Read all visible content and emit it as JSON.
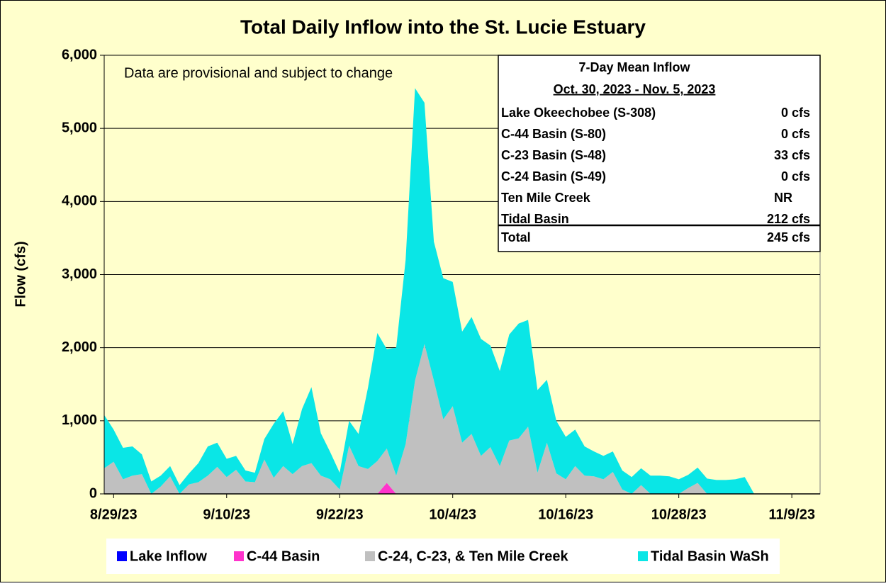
{
  "chart_data": {
    "type": "stacked_area",
    "title": "Total Daily Inflow into the St. Lucie Estuary",
    "ylabel": "Flow (cfs)",
    "annotation": "Data are provisional and subject to change",
    "x": [
      "2023-08-28",
      "2023-08-29",
      "2023-08-30",
      "2023-08-31",
      "2023-09-01",
      "2023-09-02",
      "2023-09-03",
      "2023-09-04",
      "2023-09-05",
      "2023-09-06",
      "2023-09-07",
      "2023-09-08",
      "2023-09-09",
      "2023-09-10",
      "2023-09-11",
      "2023-09-12",
      "2023-09-13",
      "2023-09-14",
      "2023-09-15",
      "2023-09-16",
      "2023-09-17",
      "2023-09-18",
      "2023-09-19",
      "2023-09-20",
      "2023-09-21",
      "2023-09-22",
      "2023-09-23",
      "2023-09-24",
      "2023-09-25",
      "2023-09-26",
      "2023-09-27",
      "2023-09-28",
      "2023-09-29",
      "2023-09-30",
      "2023-10-01",
      "2023-10-02",
      "2023-10-03",
      "2023-10-04",
      "2023-10-05",
      "2023-10-06",
      "2023-10-07",
      "2023-10-08",
      "2023-10-09",
      "2023-10-10",
      "2023-10-11",
      "2023-10-12",
      "2023-10-13",
      "2023-10-14",
      "2023-10-15",
      "2023-10-16",
      "2023-10-17",
      "2023-10-18",
      "2023-10-19",
      "2023-10-20",
      "2023-10-21",
      "2023-10-22",
      "2023-10-23",
      "2023-10-24",
      "2023-10-25",
      "2023-10-26",
      "2023-10-27",
      "2023-10-28",
      "2023-10-29",
      "2023-10-30",
      "2023-10-31",
      "2023-11-01",
      "2023-11-02",
      "2023-11-03",
      "2023-11-04",
      "2023-11-05",
      "2023-11-06",
      "2023-11-07",
      "2023-11-08",
      "2023-11-09",
      "2023-11-10",
      "2023-11-11",
      "2023-11-12"
    ],
    "series": [
      {
        "name": "Lake Inflow",
        "color": "#0000ff",
        "values": [
          0,
          0,
          0,
          0,
          0,
          0,
          0,
          0,
          0,
          0,
          0,
          0,
          0,
          0,
          0,
          0,
          0,
          0,
          0,
          0,
          0,
          0,
          0,
          0,
          0,
          0,
          0,
          0,
          0,
          0,
          0,
          0,
          0,
          0,
          0,
          0,
          0,
          0,
          0,
          0,
          0,
          0,
          0,
          0,
          0,
          0,
          0,
          0,
          0,
          0,
          0,
          0,
          0,
          0,
          0,
          0,
          0,
          0,
          0,
          0,
          0,
          0,
          0,
          0,
          0,
          0,
          0,
          0,
          0,
          0,
          0,
          0,
          0,
          0,
          0,
          0,
          0
        ]
      },
      {
        "name": "C-44 Basin",
        "color": "#ff33cc",
        "values": [
          0,
          0,
          0,
          0,
          0,
          0,
          0,
          0,
          0,
          0,
          0,
          0,
          0,
          0,
          0,
          0,
          0,
          0,
          0,
          0,
          0,
          0,
          0,
          0,
          0,
          0,
          0,
          0,
          0,
          0,
          150,
          0,
          0,
          0,
          0,
          0,
          0,
          0,
          0,
          0,
          0,
          0,
          0,
          0,
          0,
          0,
          0,
          0,
          0,
          0,
          0,
          0,
          0,
          0,
          0,
          0,
          0,
          0,
          0,
          0,
          0,
          0,
          0,
          0,
          0,
          0,
          0,
          0,
          0,
          0,
          0,
          0,
          0,
          0,
          0,
          0,
          0
        ]
      },
      {
        "name": "C-24, C-23, & Ten Mile Creek",
        "color": "#c0c0c0",
        "values": [
          350,
          440,
          200,
          250,
          270,
          0,
          100,
          240,
          0,
          130,
          160,
          250,
          370,
          230,
          330,
          170,
          160,
          470,
          220,
          380,
          270,
          380,
          420,
          250,
          200,
          60,
          660,
          380,
          340,
          450,
          470,
          250,
          680,
          1550,
          2050,
          1550,
          1020,
          1200,
          700,
          820,
          520,
          640,
          380,
          730,
          760,
          920,
          290,
          700,
          280,
          200,
          380,
          250,
          240,
          200,
          300,
          60,
          0,
          120,
          0,
          0,
          0,
          0,
          80,
          150,
          0,
          0,
          0,
          0,
          0,
          0,
          0,
          0,
          0,
          0,
          0,
          0,
          0
        ]
      },
      {
        "name": "Tidal Basin WaSh",
        "color": "#0ae6e6",
        "values": [
          730,
          440,
          430,
          400,
          270,
          170,
          150,
          140,
          120,
          150,
          260,
          400,
          330,
          250,
          190,
          150,
          130,
          280,
          740,
          750,
          410,
          780,
          1040,
          580,
          370,
          230,
          340,
          440,
          1110,
          1750,
          1360,
          1750,
          2520,
          4000,
          3300,
          1900,
          1930,
          1700,
          1520,
          1600,
          1600,
          1390,
          1300,
          1450,
          1570,
          1460,
          1130,
          860,
          720,
          580,
          500,
          400,
          340,
          320,
          280,
          260,
          230,
          230,
          250,
          250,
          240,
          200,
          180,
          210,
          210,
          190,
          190,
          200,
          230,
          0,
          0,
          0,
          0,
          0,
          0,
          0,
          0
        ]
      }
    ],
    "xlim": [
      "2023-08-28",
      "2023-11-12"
    ],
    "xticks": [
      {
        "value": "2023-08-29",
        "label": "8/29/23"
      },
      {
        "value": "2023-09-10",
        "label": "9/10/23"
      },
      {
        "value": "2023-09-22",
        "label": "9/22/23"
      },
      {
        "value": "2023-10-04",
        "label": "10/4/23"
      },
      {
        "value": "2023-10-16",
        "label": "10/16/23"
      },
      {
        "value": "2023-10-28",
        "label": "10/28/23"
      },
      {
        "value": "2023-11-09",
        "label": "11/9/23"
      }
    ],
    "ylim": [
      0,
      6000
    ],
    "yticks": [
      0,
      {
        "value": 1000,
        "label": "1,000"
      },
      {
        "value": 2000,
        "label": "2,000"
      },
      {
        "value": 3000,
        "label": "3,000"
      },
      {
        "value": 4000,
        "label": "4,000"
      },
      {
        "value": 5000,
        "label": "5,000"
      },
      {
        "value": 6000,
        "label": "6,000"
      }
    ],
    "grid": true,
    "legend": "bottom"
  },
  "inset_table": {
    "title": "7-Day Mean Inflow",
    "subtitle": "Oct. 30, 2023 - Nov. 5, 2023",
    "rows": [
      [
        "Lake Okeechobee (S-308)",
        "0 cfs"
      ],
      [
        "C-44 Basin (S-80)",
        "0 cfs"
      ],
      [
        "C-23 Basin (S-48)",
        "33 cfs"
      ],
      [
        "C-24 Basin (S-49)",
        "0 cfs"
      ],
      [
        "Ten Mile Creek",
        "NR"
      ],
      [
        "Tidal Basin",
        "212 cfs"
      ]
    ],
    "total": [
      "Total",
      "245 cfs"
    ]
  }
}
